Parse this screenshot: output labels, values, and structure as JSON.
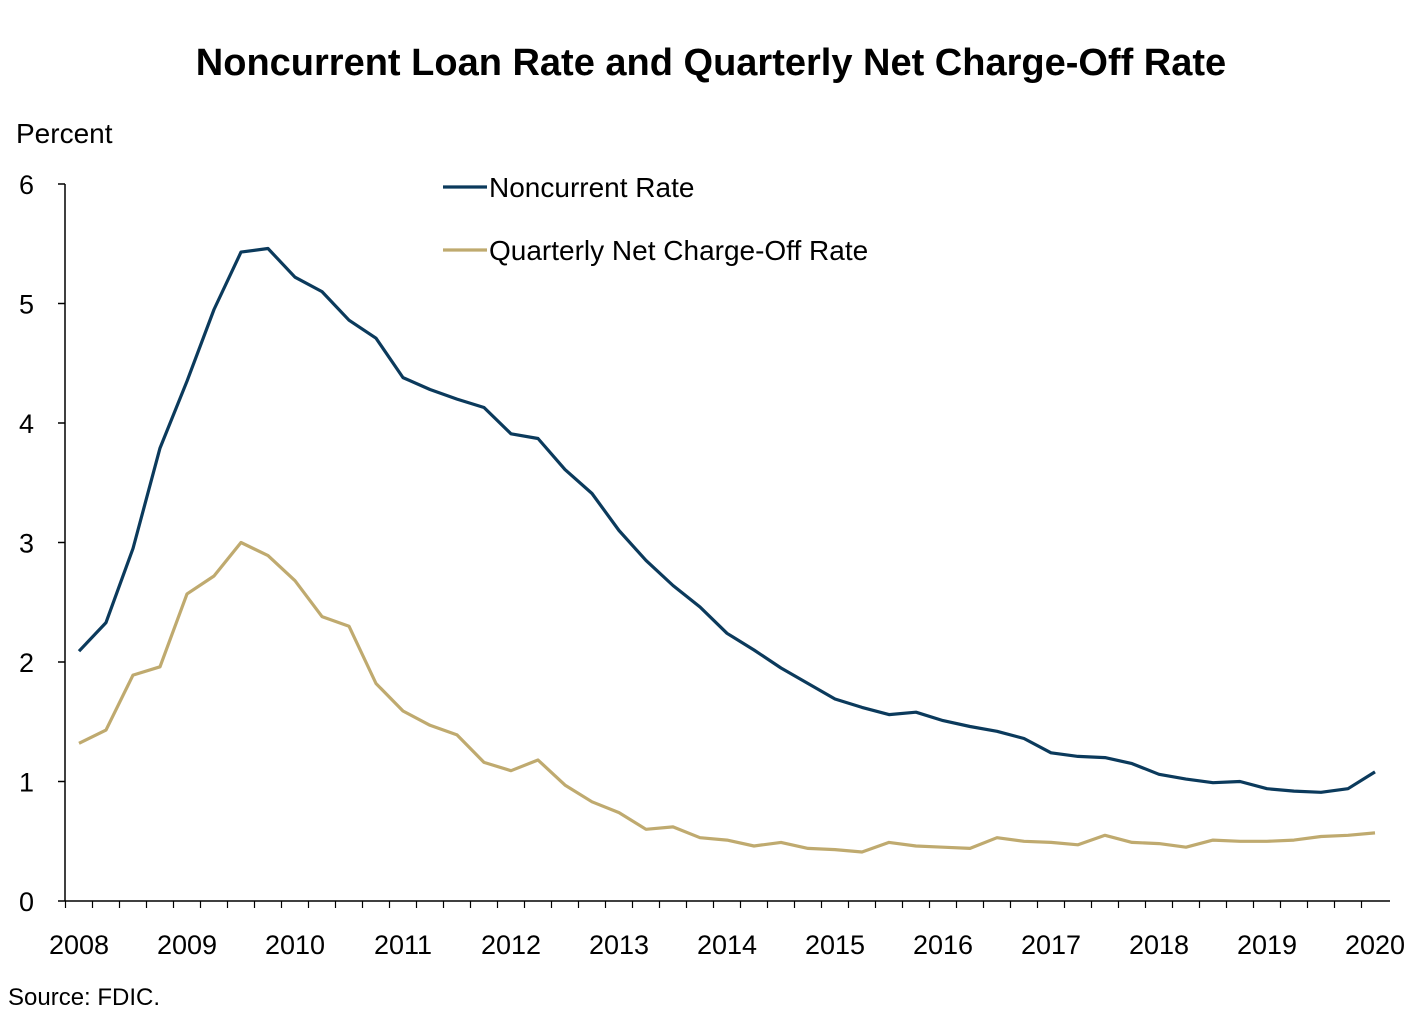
{
  "chart_data": {
    "type": "line",
    "title": "Noncurrent Loan Rate and Quarterly Net Charge-Off Rate",
    "ylabel": "Percent",
    "xlabel": "",
    "source": "Source: FDIC.",
    "ylim": [
      0,
      6
    ],
    "yticks": [
      "0",
      "1",
      "2",
      "3",
      "4",
      "5",
      "6"
    ],
    "xticks": [
      "2008",
      "2009",
      "2010",
      "2011",
      "2012",
      "2013",
      "2014",
      "2015",
      "2016",
      "2017",
      "2018",
      "2019",
      "2020"
    ],
    "x": [
      "2008Q1",
      "2008Q2",
      "2008Q3",
      "2008Q4",
      "2009Q1",
      "2009Q2",
      "2009Q3",
      "2009Q4",
      "2010Q1",
      "2010Q2",
      "2010Q3",
      "2010Q4",
      "2011Q1",
      "2011Q2",
      "2011Q3",
      "2011Q4",
      "2012Q1",
      "2012Q2",
      "2012Q3",
      "2012Q4",
      "2013Q1",
      "2013Q2",
      "2013Q3",
      "2013Q4",
      "2014Q1",
      "2014Q2",
      "2014Q3",
      "2014Q4",
      "2015Q1",
      "2015Q2",
      "2015Q3",
      "2015Q4",
      "2016Q1",
      "2016Q2",
      "2016Q3",
      "2016Q4",
      "2017Q1",
      "2017Q2",
      "2017Q3",
      "2017Q4",
      "2018Q1",
      "2018Q2",
      "2018Q3",
      "2018Q4",
      "2019Q1",
      "2019Q2",
      "2019Q3",
      "2019Q4",
      "2020Q1"
    ],
    "grid": false,
    "legend_placement": "top-center",
    "series": [
      {
        "name": "Noncurrent Rate",
        "color": "#0b3a5c",
        "values": [
          2.09,
          2.33,
          2.95,
          3.79,
          4.35,
          4.95,
          5.43,
          5.46,
          5.22,
          5.1,
          4.86,
          4.71,
          4.38,
          4.28,
          4.2,
          4.13,
          3.91,
          3.87,
          3.61,
          3.41,
          3.1,
          2.85,
          2.64,
          2.46,
          2.24,
          2.1,
          1.95,
          1.82,
          1.69,
          1.62,
          1.56,
          1.58,
          1.51,
          1.46,
          1.42,
          1.36,
          1.24,
          1.21,
          1.2,
          1.15,
          1.06,
          1.02,
          0.99,
          1.0,
          0.94,
          0.92,
          0.91,
          0.94,
          1.08
        ]
      },
      {
        "name": "Quarterly Net Charge-Off Rate",
        "color": "#bfaa6f",
        "values": [
          1.32,
          1.43,
          1.89,
          1.96,
          2.57,
          2.72,
          3.0,
          2.89,
          2.68,
          2.38,
          2.3,
          1.82,
          1.59,
          1.47,
          1.39,
          1.16,
          1.09,
          1.18,
          0.97,
          0.83,
          0.74,
          0.6,
          0.62,
          0.53,
          0.51,
          0.46,
          0.49,
          0.44,
          0.43,
          0.41,
          0.49,
          0.46,
          0.45,
          0.44,
          0.53,
          0.5,
          0.49,
          0.47,
          0.55,
          0.49,
          0.48,
          0.45,
          0.51,
          0.5,
          0.5,
          0.51,
          0.54,
          0.55,
          0.57
        ]
      }
    ]
  }
}
